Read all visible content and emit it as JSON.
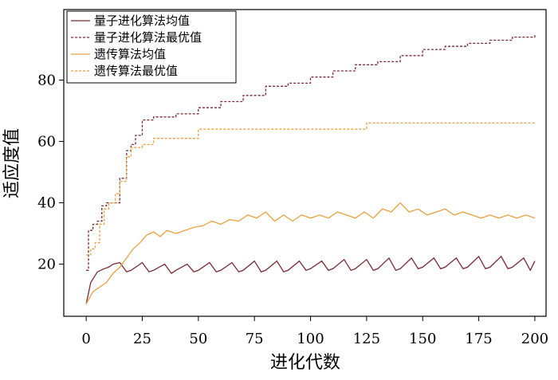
{
  "chart_data": {
    "type": "line",
    "xlabel": "进化代数",
    "ylabel": "适应度值",
    "xlim": [
      -10,
      205
    ],
    "ylim": [
      3,
      103
    ],
    "xticks": [
      0,
      25,
      50,
      75,
      100,
      125,
      150,
      175,
      200
    ],
    "yticks": [
      20,
      40,
      60,
      80
    ],
    "legend_position": "top-left",
    "series": [
      {
        "name": "量子进化算法均值",
        "color": "#7a2a33",
        "dash": "solid",
        "points": [
          [
            0,
            7
          ],
          [
            2,
            14
          ],
          [
            5,
            17.5
          ],
          [
            8,
            18.5
          ],
          [
            10,
            19
          ],
          [
            12,
            20
          ],
          [
            15,
            20.5
          ],
          [
            18,
            17.5
          ],
          [
            20,
            18
          ],
          [
            25,
            20.5
          ],
          [
            28,
            17.5
          ],
          [
            30,
            18
          ],
          [
            35,
            20
          ],
          [
            38,
            17
          ],
          [
            40,
            18
          ],
          [
            45,
            20
          ],
          [
            48,
            17.5
          ],
          [
            50,
            18
          ],
          [
            55,
            20.5
          ],
          [
            58,
            17.5
          ],
          [
            60,
            18
          ],
          [
            65,
            20.5
          ],
          [
            68,
            17.5
          ],
          [
            70,
            18
          ],
          [
            75,
            21
          ],
          [
            78,
            17.5
          ],
          [
            80,
            18
          ],
          [
            85,
            21
          ],
          [
            88,
            17.5
          ],
          [
            90,
            18
          ],
          [
            95,
            21
          ],
          [
            98,
            18
          ],
          [
            100,
            18.5
          ],
          [
            105,
            21
          ],
          [
            108,
            18
          ],
          [
            110,
            18.5
          ],
          [
            115,
            21.5
          ],
          [
            118,
            18
          ],
          [
            120,
            18.5
          ],
          [
            125,
            21.5
          ],
          [
            128,
            18
          ],
          [
            130,
            18.5
          ],
          [
            135,
            22
          ],
          [
            138,
            18
          ],
          [
            140,
            18.5
          ],
          [
            145,
            22
          ],
          [
            148,
            18.5
          ],
          [
            150,
            19
          ],
          [
            155,
            22
          ],
          [
            158,
            18.5
          ],
          [
            160,
            19
          ],
          [
            165,
            22
          ],
          [
            168,
            18.5
          ],
          [
            170,
            19
          ],
          [
            175,
            22.5
          ],
          [
            178,
            18.5
          ],
          [
            180,
            19
          ],
          [
            185,
            22.5
          ],
          [
            188,
            18.5
          ],
          [
            190,
            19
          ],
          [
            195,
            22
          ],
          [
            198,
            18
          ],
          [
            200,
            21
          ]
        ]
      },
      {
        "name": "量子进化算法最优值",
        "color": "#7a2a33",
        "dash": "dashed",
        "points": [
          [
            0,
            18
          ],
          [
            1,
            31
          ],
          [
            3,
            33
          ],
          [
            5,
            34
          ],
          [
            7,
            39
          ],
          [
            9,
            40
          ],
          [
            12,
            40
          ],
          [
            15,
            48
          ],
          [
            18,
            57
          ],
          [
            20,
            59
          ],
          [
            22,
            62
          ],
          [
            25,
            67
          ],
          [
            30,
            68
          ],
          [
            40,
            69
          ],
          [
            50,
            71
          ],
          [
            60,
            73
          ],
          [
            70,
            75
          ],
          [
            80,
            78
          ],
          [
            90,
            79
          ],
          [
            100,
            81
          ],
          [
            110,
            83
          ],
          [
            120,
            85
          ],
          [
            130,
            86
          ],
          [
            140,
            88
          ],
          [
            150,
            90
          ],
          [
            160,
            91
          ],
          [
            170,
            92
          ],
          [
            180,
            93
          ],
          [
            190,
            94
          ],
          [
            200,
            95
          ]
        ]
      },
      {
        "name": "遗传算法均值",
        "color": "#e8a040",
        "dash": "solid",
        "points": [
          [
            0,
            7
          ],
          [
            3,
            11
          ],
          [
            6,
            12.5
          ],
          [
            9,
            14
          ],
          [
            12,
            17
          ],
          [
            15,
            19
          ],
          [
            18,
            22
          ],
          [
            21,
            25
          ],
          [
            24,
            27
          ],
          [
            27,
            29.5
          ],
          [
            30,
            30.5
          ],
          [
            33,
            29
          ],
          [
            36,
            31
          ],
          [
            40,
            30
          ],
          [
            44,
            31
          ],
          [
            48,
            32
          ],
          [
            52,
            32.5
          ],
          [
            56,
            34
          ],
          [
            60,
            33
          ],
          [
            64,
            34.5
          ],
          [
            68,
            34
          ],
          [
            72,
            36
          ],
          [
            76,
            35
          ],
          [
            80,
            37
          ],
          [
            84,
            34
          ],
          [
            88,
            36
          ],
          [
            92,
            34
          ],
          [
            96,
            36
          ],
          [
            100,
            35
          ],
          [
            104,
            36
          ],
          [
            108,
            35
          ],
          [
            112,
            37
          ],
          [
            116,
            36
          ],
          [
            120,
            35
          ],
          [
            124,
            37
          ],
          [
            128,
            35
          ],
          [
            132,
            38
          ],
          [
            136,
            37
          ],
          [
            140,
            40
          ],
          [
            144,
            37
          ],
          [
            148,
            38
          ],
          [
            152,
            36
          ],
          [
            156,
            37
          ],
          [
            160,
            38
          ],
          [
            164,
            36
          ],
          [
            168,
            37
          ],
          [
            172,
            36
          ],
          [
            176,
            35
          ],
          [
            180,
            36
          ],
          [
            184,
            35
          ],
          [
            188,
            36
          ],
          [
            192,
            35
          ],
          [
            196,
            36
          ],
          [
            200,
            35
          ]
        ]
      },
      {
        "name": "遗传算法最优值",
        "color": "#e8a040",
        "dash": "dashed",
        "points": [
          [
            0,
            23
          ],
          [
            2,
            25
          ],
          [
            4,
            27
          ],
          [
            6,
            33
          ],
          [
            8,
            38
          ],
          [
            10,
            40
          ],
          [
            13,
            43
          ],
          [
            15,
            47
          ],
          [
            18,
            55
          ],
          [
            20,
            58
          ],
          [
            25,
            59
          ],
          [
            30,
            61
          ],
          [
            40,
            61
          ],
          [
            49,
            61
          ],
          [
            50,
            64
          ],
          [
            60,
            64
          ],
          [
            80,
            64
          ],
          [
            100,
            64
          ],
          [
            124,
            64
          ],
          [
            125,
            66
          ],
          [
            150,
            66
          ],
          [
            175,
            66
          ],
          [
            200,
            66
          ]
        ]
      }
    ]
  }
}
